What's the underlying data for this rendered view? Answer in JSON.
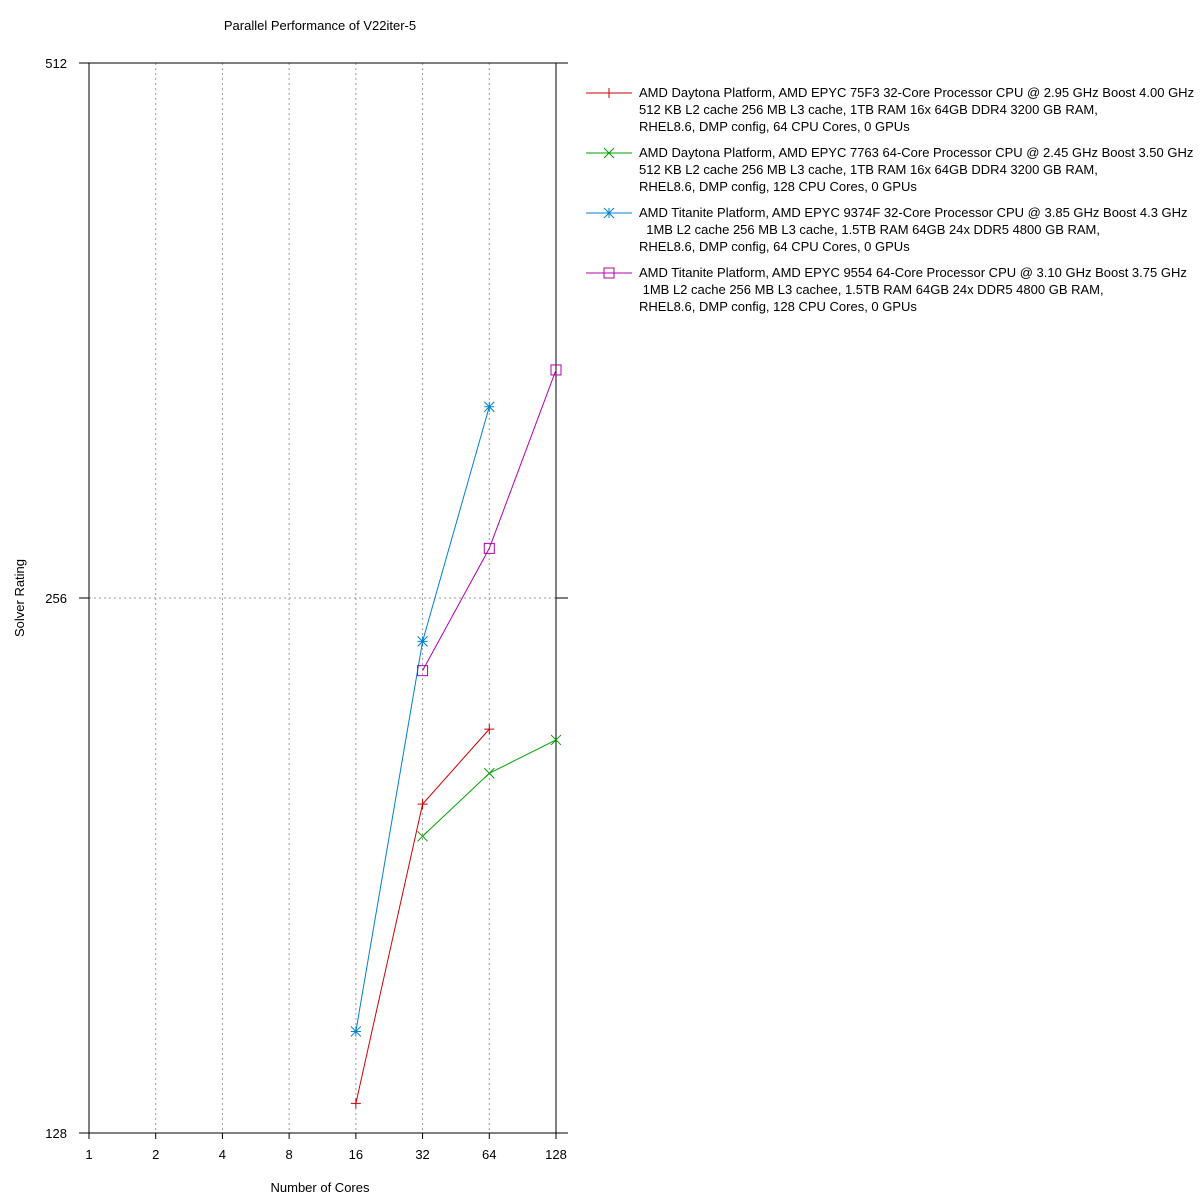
{
  "chart_data": {
    "type": "line",
    "title": "Parallel Performance of V22iter-5",
    "xlabel": "Number of Cores",
    "ylabel": "Solver Rating",
    "x_scale": "log2",
    "y_scale": "log2",
    "xlim": [
      1,
      128
    ],
    "ylim": [
      128,
      512
    ],
    "x_ticks": [
      "1",
      "2",
      "4",
      "8",
      "16",
      "32",
      "64",
      "128"
    ],
    "y_ticks": [
      "128",
      "256",
      "512"
    ],
    "grid": true,
    "legend_position": "right",
    "series": [
      {
        "name": "AMD Daytona Platform, AMD EPYC 75F3 32-Core Processor CPU @ 2.95 GHz Boost 4.00 GHz\n512 KB L2 cache 256 MB L3 cache, 1TB RAM 16x 64GB DDR4 3200 GB RAM,\nRHEL8.6, DMP config, 64 CPU Cores, 0 GPUs",
        "color": "#cc0000",
        "marker": "plus",
        "x": [
          16,
          32,
          64
        ],
        "y": [
          133,
          196,
          216
        ]
      },
      {
        "name": "AMD Daytona Platform, AMD EPYC 7763 64-Core Processor CPU @ 2.45 GHz Boost 3.50 GHz\n512 KB L2 cache 256 MB L3 cache, 1TB RAM 16x 64GB DDR4 3200 GB RAM,\nRHEL8.6, DMP config, 128 CPU Cores, 0 GPUs",
        "color": "#00a000",
        "marker": "cross",
        "x": [
          32,
          64,
          128
        ],
        "y": [
          188,
          204,
          213
        ]
      },
      {
        "name": "AMD Titanite Platform, AMD EPYC 9374F 32-Core Processor CPU @ 3.85 GHz Boost 4.3 GHz\n  1MB L2 cache 256 MB L3 cache, 1.5TB RAM 64GB 24x DDR5 4800 GB RAM,\nRHEL8.6, DMP config, 64 CPU Cores, 0 GPUs",
        "color": "#0080d0",
        "marker": "star",
        "x": [
          16,
          32,
          64
        ],
        "y": [
          146,
          242,
          328
        ]
      },
      {
        "name": "AMD Titanite Platform, AMD EPYC 9554 64-Core Processor CPU @ 3.10 GHz Boost 3.75 GHz\n 1MB L2 cache 256 MB L3 cachee, 1.5TB RAM 64GB 24x DDR5 4800 GB RAM,\nRHEL8.6, DMP config, 128 CPU Cores, 0 GPUs",
        "color": "#b000b0",
        "marker": "square",
        "x": [
          32,
          64,
          128
        ],
        "y": [
          233,
          273,
          344
        ]
      }
    ]
  }
}
